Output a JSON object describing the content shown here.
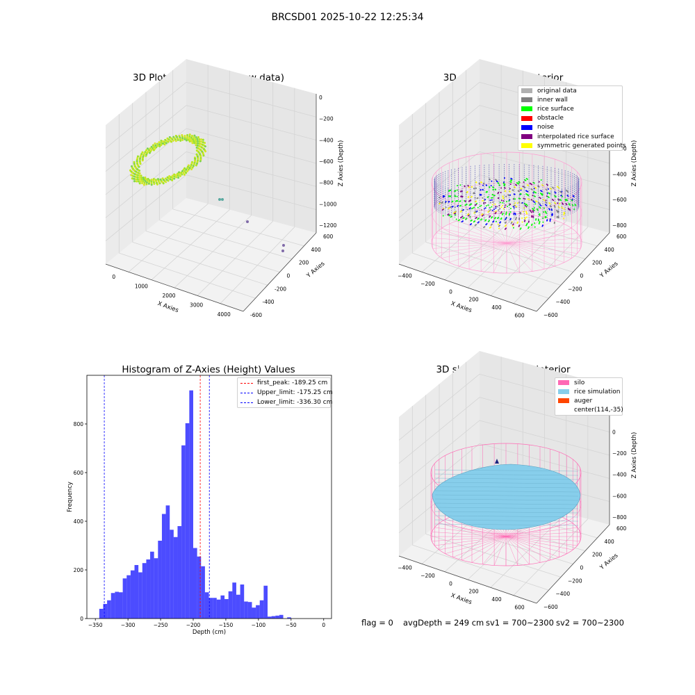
{
  "figure": {
    "title": "BRCSD01 2025-10-22 12:25:34"
  },
  "panels": {
    "raw": {
      "title": "3D Plot of Silo Interior(row data)",
      "x_label": "X Axies",
      "y_label": "Y Axies",
      "z_label": "Z Axies (Depth)",
      "x_ticks": [
        "0",
        "1000",
        "2000",
        "3000",
        "4000"
      ],
      "y_ticks": [
        "-600",
        "-400",
        "-200",
        "0",
        "200",
        "400",
        "600"
      ],
      "z_ticks": [
        "0",
        "−200",
        "−400",
        "−600",
        "−800",
        "−1000",
        "−1200"
      ]
    },
    "classify": {
      "title": "3D classify of Silo Interior",
      "x_label": "X Axies",
      "y_label": "Y Axies",
      "z_label": "Z Axies (Depth)",
      "x_ticks": [
        "−400",
        "−200",
        "0",
        "200",
        "400",
        "600"
      ],
      "y_ticks": [
        "−600",
        "−400",
        "−200",
        "0",
        "200",
        "400",
        "600"
      ],
      "z_ticks": [
        "200",
        "0",
        "−200",
        "−400",
        "−600",
        "−800"
      ],
      "legend": [
        {
          "label": "original data",
          "color": "#b0b0b0"
        },
        {
          "label": "inner wall",
          "color": "#808080"
        },
        {
          "label": "rice surface",
          "color": "#00ff00"
        },
        {
          "label": "obstacle",
          "color": "#ff0000"
        },
        {
          "label": "noise",
          "color": "#0000ff"
        },
        {
          "label": "interpolated rice surface",
          "color": "#800080"
        },
        {
          "label": "symmetric generated points",
          "color": "#ffff00"
        }
      ]
    },
    "simulation": {
      "title": "3D simulation of Silo Interior",
      "x_label": "X Axies",
      "y_label": "Y Axies",
      "z_label": "Z Axies (Depth)",
      "x_ticks": [
        "−400",
        "−200",
        "0",
        "200",
        "400",
        "600"
      ],
      "y_ticks": [
        "−600",
        "−400",
        "−200",
        "0",
        "200",
        "400",
        "600"
      ],
      "z_ticks": [
        "400",
        "200",
        "0",
        "−200",
        "−400",
        "−600",
        "−800"
      ],
      "legend": [
        {
          "label": "silo",
          "color": "#ff69b4"
        },
        {
          "label": "rice simulation",
          "color": "#87ceeb"
        },
        {
          "label": "auger",
          "color": "#ff4500"
        },
        {
          "label": "center(114,-35)",
          "color": ""
        }
      ]
    }
  },
  "chart_data": {
    "type": "bar",
    "title": "Histogram of Z-Axies (Height) Values",
    "xlabel": "Depth (cm)",
    "ylabel": "Frequency",
    "xlim": [
      -363,
      12
    ],
    "ylim": [
      0,
      1000
    ],
    "xticks": [
      -350,
      -300,
      -250,
      -200,
      -150,
      -100,
      -50,
      0
    ],
    "yticks": [
      0,
      200,
      400,
      600,
      800
    ],
    "bin_width": 6,
    "bin_start": -344,
    "bar_color": "#0000ff",
    "values": [
      40,
      60,
      75,
      105,
      110,
      108,
      165,
      178,
      198,
      220,
      190,
      228,
      243,
      275,
      248,
      320,
      430,
      465,
      365,
      335,
      380,
      712,
      803,
      938,
      290,
      255,
      215,
      108,
      85,
      85,
      78,
      95,
      80,
      112,
      148,
      98,
      140,
      70,
      68,
      45,
      55,
      75,
      135,
      8,
      10,
      12,
      15,
      0,
      5
    ],
    "vlines": [
      {
        "label": "first_peak: -189.25 cm",
        "x": -189.25,
        "color": "#ff0000"
      },
      {
        "label": "Upper_limit: -175.25 cm",
        "x": -175.25,
        "color": "#0000ff"
      },
      {
        "label": "Lower_limit: -336.30 cm",
        "x": -336.3,
        "color": "#0000ff"
      }
    ]
  },
  "status": {
    "flag": "flag = 0",
    "avg_depth": "avgDepth = 249 cm",
    "sv1": "sv1 = 700~2300",
    "sv2": "sv2 = 700~2300"
  }
}
